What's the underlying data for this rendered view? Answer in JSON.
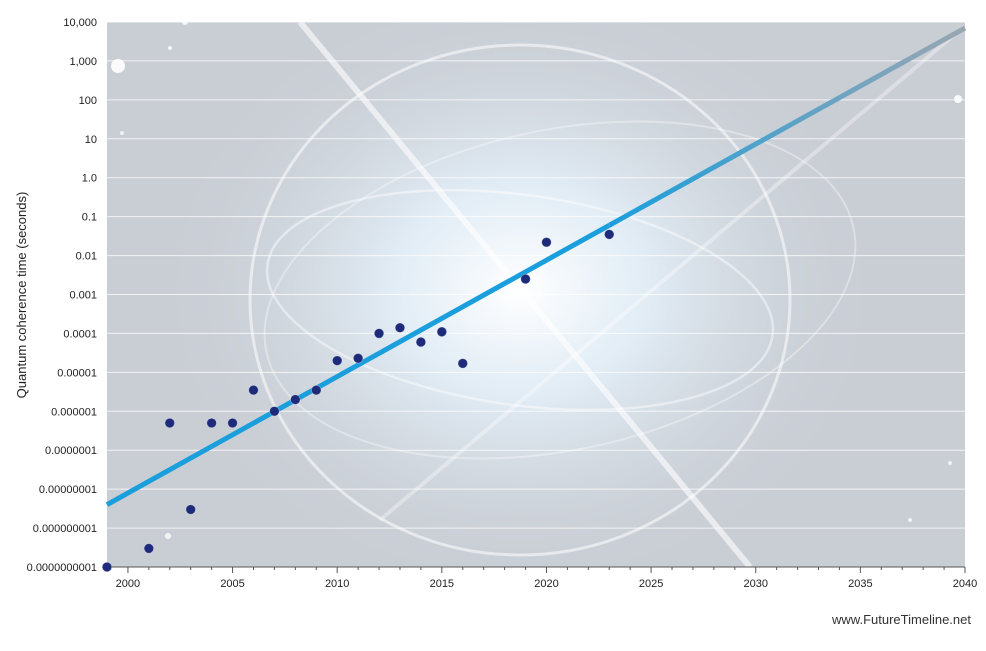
{
  "chart_data": {
    "type": "scatter",
    "title": "",
    "xlabel": "",
    "ylabel": "Quantum coherence time (seconds)",
    "y_scale": "log",
    "xlim": [
      1999,
      2040
    ],
    "ylim": [
      1e-10,
      10000
    ],
    "x_tick_labels": [
      "2000",
      "2005",
      "2010",
      "2015",
      "2020",
      "2025",
      "2030",
      "2035",
      "2040"
    ],
    "y_tick_labels": [
      "0.0000000001",
      "0.000000001",
      "0.00000001",
      "0.0000001",
      "0.000001",
      "0.00001",
      "0.0001",
      "0.001",
      "0.01",
      "0.1",
      "1.0",
      "10",
      "100",
      "1,000",
      "10,000"
    ],
    "grid": true,
    "series": [
      {
        "kind": "points",
        "color": "#1d2b7a",
        "points": [
          {
            "x": 1999,
            "y": 1e-10
          },
          {
            "x": 2001,
            "y": 3e-10
          },
          {
            "x": 2002,
            "y": 5e-07
          },
          {
            "x": 2003,
            "y": 3e-09
          },
          {
            "x": 2004,
            "y": 5e-07
          },
          {
            "x": 2005,
            "y": 5e-07
          },
          {
            "x": 2006,
            "y": 3.5e-06
          },
          {
            "x": 2007,
            "y": 1e-06
          },
          {
            "x": 2008,
            "y": 2e-06
          },
          {
            "x": 2009,
            "y": 3.5e-06
          },
          {
            "x": 2010,
            "y": 2e-05
          },
          {
            "x": 2011,
            "y": 2.3e-05
          },
          {
            "x": 2012,
            "y": 0.0001
          },
          {
            "x": 2013,
            "y": 0.00014
          },
          {
            "x": 2014,
            "y": 6e-05
          },
          {
            "x": 2015,
            "y": 0.00011
          },
          {
            "x": 2016,
            "y": 1.7e-05
          },
          {
            "x": 2019,
            "y": 0.0025
          },
          {
            "x": 2020,
            "y": 0.022
          },
          {
            "x": 2023,
            "y": 0.035
          }
        ]
      },
      {
        "kind": "trend",
        "color": "#1a9fdc",
        "projection_color": "#9aa6b2",
        "points": [
          {
            "x": 1999,
            "y": 4e-09
          },
          {
            "x": 2023,
            "y": 0.06
          },
          {
            "x": 2040,
            "y": 7000
          }
        ]
      }
    ]
  },
  "footer": {
    "credit": "www.FutureTimeline.net"
  }
}
